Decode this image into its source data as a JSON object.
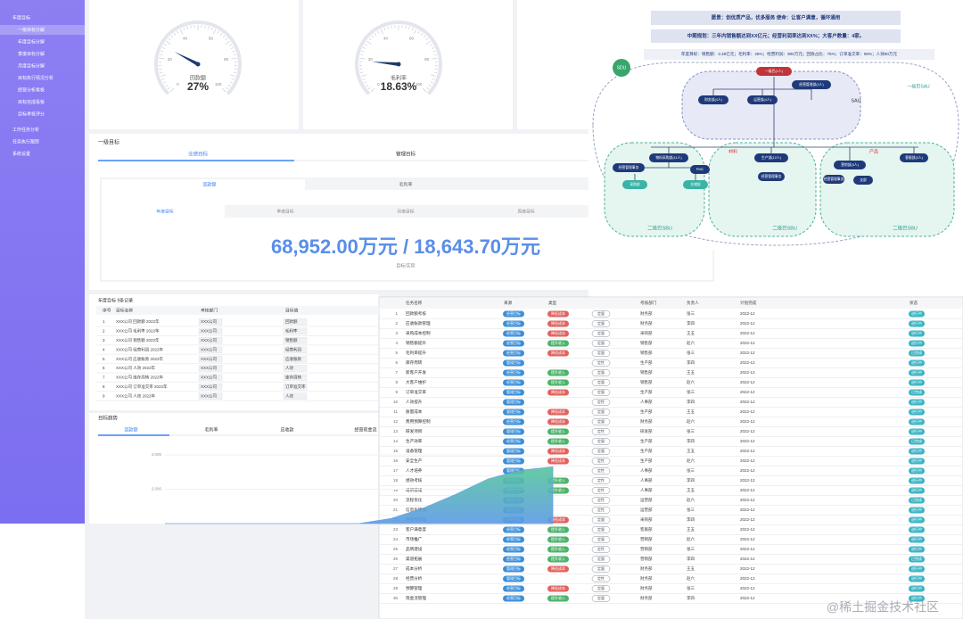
{
  "sidebar": {
    "items": [
      "年度目标",
      "一级目标分解",
      "年度目标分解",
      "季度目标分解",
      "月度目标分解",
      "目标执行情况分析",
      "经营分析看板",
      "目标完成看板",
      "目标考核评分",
      "工作任务分析",
      "任务执行跟踪",
      "系统设置"
    ]
  },
  "gauge_ticks": [
    0,
    20,
    40,
    60,
    80,
    100
  ],
  "gauges": [
    {
      "name": "回款额",
      "value": 27,
      "value_label": "27%"
    },
    {
      "name": "毛利率",
      "value": 18.63,
      "value_label": "18.63%"
    }
  ],
  "goal_card": {
    "title": "一级目标",
    "tabs": [
      "业绩目标",
      "管理目标"
    ],
    "metric_tabs": [
      "回款额",
      "毛利率"
    ],
    "period_tabs": [
      "年度目标",
      "季度目标",
      "月度目标",
      "周度目标"
    ],
    "figure": "68,952.00万元 / 18,643.70万元",
    "figure_caption": "目标/实际"
  },
  "goal_table": {
    "title": "年度目标 9条记录",
    "columns": [
      "序号",
      "目标名称",
      "考核部门",
      "目标值"
    ],
    "rows": [
      [
        "1",
        "XXX公司 回款额 2022年",
        "XXX公司",
        "回款额"
      ],
      [
        "2",
        "XXX公司 毛利率 2022年",
        "XXX公司",
        "毛利率"
      ],
      [
        "3",
        "XXX公司 销售额 2022年",
        "XXX公司",
        "销售额"
      ],
      [
        "4",
        "XXX公司 经营利润 2022年",
        "XXX公司",
        "经营利润"
      ],
      [
        "5",
        "XXX公司 应收账款 2022年",
        "XXX公司",
        "应收账款"
      ],
      [
        "6",
        "XXX公司 人效 2022年",
        "XXX公司",
        "人效"
      ],
      [
        "7",
        "XXX公司 库存周转 2022年",
        "XXX公司",
        "库存周转"
      ],
      [
        "8",
        "XXX公司 订单准交率 2022年",
        "XXX公司",
        "订单准交率"
      ],
      [
        "9",
        "XXX公司 人效 2022年",
        "XXX公司",
        "人效"
      ]
    ]
  },
  "chart_data": {
    "type": "area",
    "title": "目标趋势",
    "tabs": [
      "回款额",
      "毛利率",
      "应收款",
      "经营现金流"
    ],
    "values": [
      0,
      0,
      0,
      0,
      0,
      0,
      0,
      300,
      900,
      1700,
      2600,
      3100,
      3300
    ],
    "ylim": [
      0,
      4000
    ],
    "yticks": [
      {
        "value": 2000,
        "label": "2,000"
      },
      {
        "value": 4000,
        "label": "4,000"
      }
    ],
    "color": "#5b9be6"
  },
  "org": {
    "vision": "愿景：创优质产品，优多服务  使命：让客户满意，循环通用",
    "plan": "中期规划：三年内销售额达到XX亿元；经营利润率达到XX%；大客户数量：4家。",
    "annual": "年度目标：销售额：3.38亿元；毛利率：25%；经营利润：900万元；回款占比：75%；订单准交率：98%；人效90万元",
    "labels": [
      "SDU",
      "SAU",
      "一级巴SAU",
      "二级巴SBU",
      "二级巴SBU",
      "二级巴SBU",
      "材料",
      "产品"
    ],
    "nodes": [
      "一级巴(1人)",
      "财务部(4人)",
      "运营部(4人)",
      "经营管理部(3人)",
      "物料采购部(11人)",
      "生产部(12人)",
      "营销部(3人)",
      "客服部(3人)",
      "经营管理事务",
      "PMC",
      "采购部",
      "仓储部",
      "支部",
      "经营管理事务",
      "经营管理事务"
    ]
  },
  "task_table": {
    "columns": [
      "任务名称",
      "来源",
      "类型",
      "考核方式",
      "考核部门",
      "负责人",
      "计划完成",
      "状态"
    ],
    "type_colors": {
      "降低成本": "#e0635f",
      "提升收入": "#4db36b"
    },
    "rows": [
      [
        "1",
        "回款额考核",
        "经营目标",
        "降低成本",
        "定量",
        "财务部",
        "张三",
        "2022-12",
        "进行中"
      ],
      [
        "2",
        "应收账款管理",
        "经营目标",
        "降低成本",
        "定量",
        "财务部",
        "李四",
        "2022-12",
        "进行中"
      ],
      [
        "3",
        "采购成本控制",
        "经营目标",
        "降低成本",
        "定量",
        "采购部",
        "王五",
        "2022-12",
        "进行中"
      ],
      [
        "4",
        "销售额提升",
        "经营目标",
        "提升收入",
        "定量",
        "销售部",
        "赵六",
        "2022-12",
        "进行中"
      ],
      [
        "5",
        "毛利率提升",
        "经营目标",
        "降低成本",
        "定量",
        "销售部",
        "张三",
        "2022-12",
        "已完成"
      ],
      [
        "6",
        "库存周转",
        "管理目标",
        null,
        "定性",
        "生产部",
        "李四",
        "2022-12",
        "进行中"
      ],
      [
        "7",
        "新客户开发",
        "经营目标",
        "提升收入",
        "定量",
        "销售部",
        "王五",
        "2022-12",
        "进行中"
      ],
      [
        "8",
        "大客户维护",
        "经营目标",
        "提升收入",
        "定量",
        "销售部",
        "赵六",
        "2022-12",
        "进行中"
      ],
      [
        "9",
        "订单准交率",
        "管理目标",
        "降低成本",
        "定量",
        "生产部",
        "张三",
        "2022-12",
        "已完成"
      ],
      [
        "10",
        "人效提升",
        "管理目标",
        null,
        "定性",
        "人事部",
        "李四",
        "2022-12",
        "进行中"
      ],
      [
        "11",
        "质量成本",
        "管理目标",
        "降低成本",
        "定量",
        "生产部",
        "王五",
        "2022-12",
        "进行中"
      ],
      [
        "12",
        "费用预算控制",
        "经营目标",
        "降低成本",
        "定量",
        "财务部",
        "赵六",
        "2022-12",
        "进行中"
      ],
      [
        "13",
        "研发项目",
        "管理目标",
        "提升收入",
        "定性",
        "研发部",
        "张三",
        "2022-12",
        "进行中"
      ],
      [
        "14",
        "生产效率",
        "经营目标",
        "提升收入",
        "定量",
        "生产部",
        "李四",
        "2022-12",
        "已完成"
      ],
      [
        "15",
        "设备管理",
        "管理目标",
        "降低成本",
        "定量",
        "生产部",
        "王五",
        "2022-12",
        "进行中"
      ],
      [
        "16",
        "安全生产",
        "管理目标",
        "降低成本",
        "定性",
        "生产部",
        "赵六",
        "2022-12",
        "进行中"
      ],
      [
        "17",
        "人才培养",
        "管理目标",
        null,
        "定性",
        "人事部",
        "张三",
        "2022-12",
        "进行中"
      ],
      [
        "18",
        "绩效考核",
        "管理目标",
        "提升收入",
        "定性",
        "人事部",
        "李四",
        "2022-12",
        "进行中"
      ],
      [
        "19",
        "组织建设",
        "管理目标",
        "提升收入",
        "定性",
        "人事部",
        "王五",
        "2022-12",
        "进行中"
      ],
      [
        "20",
        "流程优化",
        "管理目标",
        null,
        "定性",
        "运营部",
        "赵六",
        "2022-12",
        "已完成"
      ],
      [
        "21",
        "信息化建设",
        "管理目标",
        null,
        "定性",
        "运营部",
        "张三",
        "2022-12",
        "进行中"
      ],
      [
        "22",
        "供应商管理",
        "经营目标",
        "降低成本",
        "定量",
        "采购部",
        "李四",
        "2022-12",
        "进行中"
      ],
      [
        "23",
        "客户满意度",
        "经营目标",
        "提升收入",
        "定量",
        "客服部",
        "王五",
        "2022-12",
        "进行中"
      ],
      [
        "24",
        "市场推广",
        "经营目标",
        "提升收入",
        "定量",
        "营销部",
        "赵六",
        "2022-12",
        "进行中"
      ],
      [
        "25",
        "品牌建设",
        "经营目标",
        "提升收入",
        "定性",
        "营销部",
        "张三",
        "2022-12",
        "进行中"
      ],
      [
        "26",
        "渠道拓展",
        "经营目标",
        "提升收入",
        "定量",
        "营销部",
        "李四",
        "2022-12",
        "已完成"
      ],
      [
        "27",
        "成本分析",
        "管理目标",
        "降低成本",
        "定量",
        "财务部",
        "王五",
        "2022-12",
        "进行中"
      ],
      [
        "28",
        "经营分析",
        "管理目标",
        null,
        "定性",
        "财务部",
        "赵六",
        "2022-12",
        "进行中"
      ],
      [
        "29",
        "预算管理",
        "经营目标",
        "降低成本",
        "定量",
        "财务部",
        "张三",
        "2022-12",
        "进行中"
      ],
      [
        "30",
        "现金流管理",
        "经营目标",
        "提升收入",
        "定量",
        "财务部",
        "李四",
        "2022-12",
        "进行中"
      ]
    ]
  },
  "watermark": "@稀土掘金技术社区"
}
